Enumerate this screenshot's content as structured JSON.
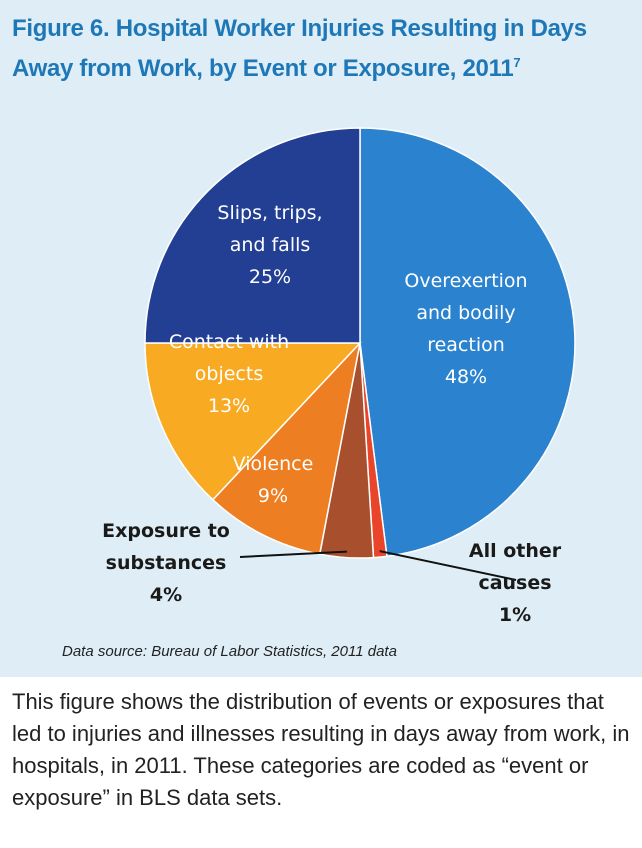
{
  "figure": {
    "title": "Figure 6. Hospital Worker Injuries Resulting in Days Away from Work, by Event or Exposure, 2011",
    "title_footnote": "7",
    "source": "Data source: Bureau of Labor Statistics, 2011 data",
    "caption": "This figure shows the distribution of events or exposures that led to injuries and illnesses resulting in days away from work, in hospitals, in 2011. These categories are coded as “event or exposure” in BLS data sets."
  },
  "chart_data": {
    "type": "pie",
    "slices": [
      {
        "label": [
          "Overexertion",
          "and bodily",
          "reaction"
        ],
        "value": 48,
        "value_label": "48%",
        "color": "#2b82cf"
      },
      {
        "label": [
          "All other",
          "causes"
        ],
        "value": 1,
        "value_label": "1%",
        "color": "#e8452a"
      },
      {
        "label": [
          "Exposure to",
          "substances"
        ],
        "value": 4,
        "value_label": "4%",
        "color": "#a8502e"
      },
      {
        "label": [
          "Violence"
        ],
        "value": 9,
        "value_label": "9%",
        "color": "#ee7e22"
      },
      {
        "label": [
          "Contact with",
          "objects"
        ],
        "value": 13,
        "value_label": "13%",
        "color": "#f7aa22"
      },
      {
        "label": [
          "Slips, trips,",
          "and falls"
        ],
        "value": 25,
        "value_label": "25%",
        "color": "#233f93"
      }
    ]
  }
}
